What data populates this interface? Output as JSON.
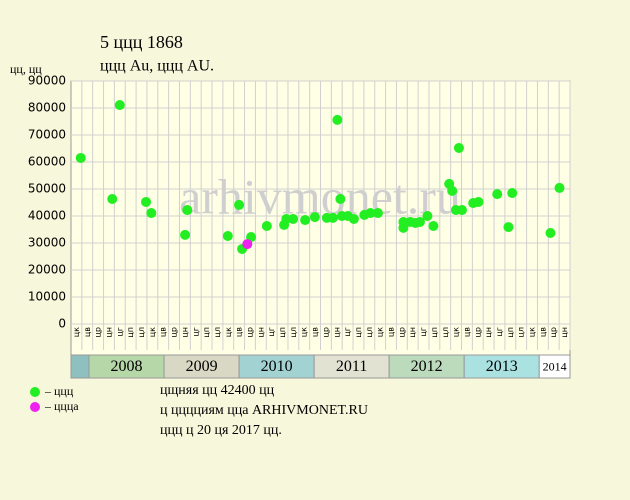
{
  "chart_data": {
    "type": "scatter",
    "title": "5 ццц 1868",
    "subtitle": "ццц Au, ццц AU.",
    "y_label": "цц, цц",
    "watermark": "arhivmonet.ru",
    "xlim": [
      2007.76,
      2014.41
    ],
    "xticks": [
      {
        "value": 2008,
        "label": "2008"
      },
      {
        "value": 2009,
        "label": "2009"
      },
      {
        "value": 2010,
        "label": "2010"
      },
      {
        "value": 2011,
        "label": "2011"
      },
      {
        "value": 2012,
        "label": "2012"
      },
      {
        "value": 2013,
        "label": "2013"
      },
      {
        "value": 2014,
        "label": "2014"
      }
    ],
    "year_band_colors": [
      "#b6d7a8",
      "#d8d8c4",
      "#a2d2d2",
      "#e2e2d2",
      "#bcdabc",
      "#aae2e2",
      "#ffffff"
    ],
    "month_labels": [
      "цк",
      "цв",
      "цр",
      "цн",
      "цг",
      "цп",
      "цл",
      "цк",
      "цв",
      "цр",
      "цн",
      "цг",
      "цп",
      "цл",
      "цк",
      "цв",
      "цр",
      "цн",
      "цг",
      "цп",
      "цл",
      "цк",
      "цв",
      "цр",
      "цн",
      "цг",
      "цп",
      "цл",
      "цк",
      "цв",
      "цр",
      "цн",
      "цг",
      "цп",
      "цл",
      "цк",
      "цв",
      "цр",
      "цн",
      "цг",
      "цп",
      "цл",
      "цк",
      "цв",
      "цр",
      "цн"
    ],
    "ylim": [
      0,
      90000
    ],
    "yticks": [
      0,
      10000,
      20000,
      30000,
      40000,
      50000,
      60000,
      70000,
      80000,
      90000
    ],
    "grid": true,
    "series": [
      {
        "name": "– ццц",
        "color": "#22ee22",
        "x": [
          2007.89,
          2008.31,
          2008.41,
          2008.76,
          2008.83,
          2009.28,
          2009.31,
          2009.85,
          2010.0,
          2010.04,
          2010.16,
          2010.37,
          2010.6,
          2010.63,
          2010.72,
          2010.88,
          2011.01,
          2011.17,
          2011.25,
          2011.31,
          2011.35,
          2011.37,
          2011.45,
          2011.53,
          2011.67,
          2011.75,
          2011.85,
          2012.19,
          2012.19,
          2012.28,
          2012.35,
          2012.41,
          2012.51,
          2012.59,
          2012.8,
          2012.84,
          2012.89,
          2012.93,
          2012.97,
          2013.12,
          2013.19,
          2013.44,
          2013.59,
          2013.64,
          2014.15,
          2014.27
        ],
        "values": [
          61500,
          46300,
          81100,
          45200,
          41100,
          33000,
          42200,
          32600,
          44100,
          27800,
          32200,
          36300,
          36700,
          38900,
          38900,
          38500,
          39600,
          39300,
          39300,
          75600,
          46300,
          40000,
          40000,
          38900,
          40400,
          41100,
          41100,
          37800,
          35600,
          37800,
          37400,
          37800,
          40000,
          36300,
          51900,
          49300,
          42200,
          65200,
          42200,
          44800,
          45200,
          48100,
          35900,
          48500,
          33700,
          50400
        ]
      },
      {
        "name": "– ццца",
        "color": "#ee22ee",
        "x": [
          2010.11
        ],
        "values": [
          29600
        ]
      }
    ],
    "notes": [
      "цщняя цц 42400 цц",
      "ц цццциям цца ARHIVMONET.RU",
      "ццц ц 20 ця 2017 цц."
    ]
  }
}
